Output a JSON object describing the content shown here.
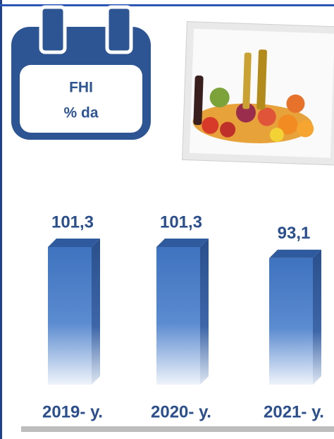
{
  "chart_data": {
    "type": "bar3d",
    "title": "FHI",
    "subtitle": "% da",
    "categories": [
      "2019- у.",
      "2020- у.",
      "2021- у."
    ],
    "values": [
      101.3,
      101.3,
      93.1
    ],
    "value_labels": [
      "101,3",
      "101,3",
      "93,1"
    ],
    "color": "#4a7cc4"
  }
}
